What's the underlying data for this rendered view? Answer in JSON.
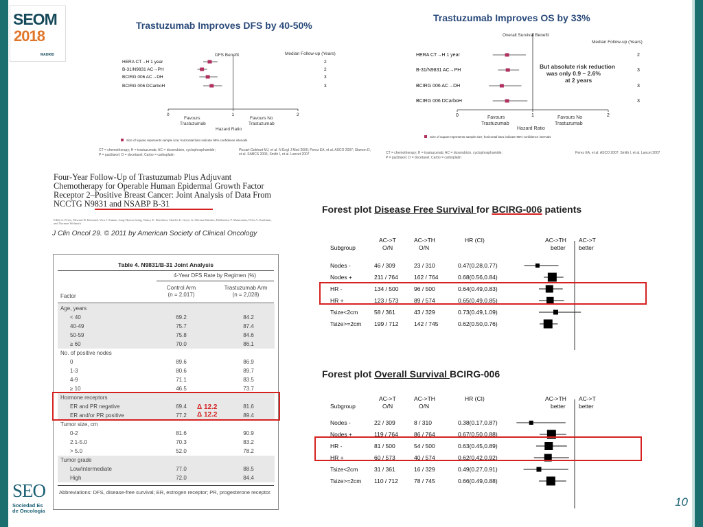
{
  "logo": {
    "seom": "SEOM",
    "year": "2018",
    "city": "MADRID"
  },
  "dfs_panel": {
    "title": "Trastuzumab Improves DFS by 40-50%",
    "benefit_label": "DFS Benefit",
    "followup_header": "Median Follow-up (Years)",
    "x_axis_label": "Hazard Ratio",
    "favours_left": [
      "Favours",
      "Trastuzumab"
    ],
    "favours_right": [
      "Favours No",
      "Trastuzumab"
    ],
    "legend_text": "Size of square represents sample size; horizontal bars indicate 95% confidence intervals",
    "footnotes": [
      "CT = chemotherapy; H = trastuzumab; AC = doxorubicin, cyclophosphamide;",
      "P = paclitaxel; D = docetaxel; Carbo = carboplatin",
      "Piccart-Gebhart MJ, et al. N Engl J Med 2005; Perez EA, et al. ASCO 2007; Slamon D, et al. SABCS 2006; Smith I, et al. Lancet 2007"
    ]
  },
  "os_panel": {
    "title": "Trastuzumab Improves OS by 33%",
    "benefit_label": "Overall Survival Benefit",
    "followup_header": "Median Follow-up (Years)",
    "x_axis_label": "Hazard Ratio",
    "favours_left": [
      "Favours",
      "Trastuzumab"
    ],
    "favours_right": [
      "Favours No",
      "Trastuzumab"
    ],
    "annotation": [
      "But absolute risk reduction",
      "was only 0.9 – 2.6%",
      "at 2 years"
    ],
    "legend_text": "Size of square represents sample size; horizontal bars indicate 95% confidence intervals",
    "footnotes": [
      "CT = chemotherapy; H = trastuzumab; AC = doxorubicin, cyclophosphamide;",
      "P = paclitaxel; D = docetaxel; Carbo = carboplatin",
      "Perez EA, et al. ASCO 2007; Smith I, et al. Lancet 2007"
    ]
  },
  "paper": {
    "title": "Four-Year Follow-Up of Trastuzumab Plus Adjuvant Chemotherapy for Operable Human Epidermal Growth Factor Receptor 2–Positive Breast Cancer: Joint Analysis of Data From NCCTG N9831 and NSABP B-31",
    "authors": "Edith A. Perez, Edward H. Romond, Vera J. Suman, Jong-Hyeon Jeong, Nancy E. Davidson, Charles E. Geyer Jr, Silvana Martino, Eleftherios P. Mamounas, Peter A. Kaufman, and Norman Wolmark",
    "citation": "J Clin Oncol 29. © 2011 by American Society of Clinical Oncology"
  },
  "table": {
    "title": "Table 4. N9831/B-31 Joint Analysis",
    "group_header": "4-Year DFS Rate by Regimen (%)",
    "col_factor": "Factor",
    "col_control": [
      "Control Arm",
      "(n = 2,017)"
    ],
    "col_trast": [
      "Trastuzumab Arm",
      "(n = 2,028)"
    ],
    "rows": [
      {
        "factor": "Age, years",
        "control": "",
        "trast": "",
        "head": true,
        "shaded": true
      },
      {
        "factor": "< 40",
        "control": "69.2",
        "trast": "84.2",
        "shaded": true
      },
      {
        "factor": "40-49",
        "control": "75.7",
        "trast": "87.4",
        "shaded": true
      },
      {
        "factor": "50-59",
        "control": "75.8",
        "trast": "84.6",
        "shaded": true
      },
      {
        "factor": "≥ 60",
        "control": "70.0",
        "trast": "86.1",
        "shaded": true
      },
      {
        "factor": "No. of positive nodes",
        "control": "",
        "trast": "",
        "head": true,
        "shaded": false
      },
      {
        "factor": "0",
        "control": "89.6",
        "trast": "86.9",
        "shaded": false
      },
      {
        "factor": "1-3",
        "control": "80.6",
        "trast": "89.7",
        "shaded": false
      },
      {
        "factor": "4-9",
        "control": "71.1",
        "trast": "83.5",
        "shaded": false
      },
      {
        "factor": "≥ 10",
        "control": "46.5",
        "trast": "73.7",
        "shaded": false
      },
      {
        "factor": "Hormone receptors",
        "control": "",
        "trast": "",
        "head": true,
        "shaded": true
      },
      {
        "factor": "ER and PR negative",
        "control": "69.4",
        "trast": "81.6",
        "shaded": true
      },
      {
        "factor": "ER and/or PR positive",
        "control": "77.2",
        "trast": "89.4",
        "shaded": true
      },
      {
        "factor": "Tumor size, cm",
        "control": "",
        "trast": "",
        "head": true,
        "shaded": false
      },
      {
        "factor": "0-2",
        "control": "81.6",
        "trast": "90.9",
        "shaded": false
      },
      {
        "factor": "2.1-5.0",
        "control": "70.3",
        "trast": "83.2",
        "shaded": false
      },
      {
        "factor": "> 5.0",
        "control": "52.0",
        "trast": "78.2",
        "shaded": false
      },
      {
        "factor": "Tumor grade",
        "control": "",
        "trast": "",
        "head": true,
        "shaded": true
      },
      {
        "factor": "Low/intermediate",
        "control": "77.0",
        "trast": "88.5",
        "shaded": true
      },
      {
        "factor": "High",
        "control": "72.0",
        "trast": "84.4",
        "shaded": true
      }
    ],
    "footnote": "Abbreviations: DFS, disease-free survival; ER, estrogen receptor; PR, progesterone receptor.",
    "delta_1": "Δ 12.2",
    "delta_2": "Δ 12.2"
  },
  "dfs_heading": {
    "prefix": "Forest plot ",
    "underlined": "Disease Free Survival ",
    "mid": "for ",
    "underlined_red": "BCIRG-006",
    "suffix": " patients"
  },
  "os_heading": {
    "prefix": "Forest plot ",
    "underlined": "Overall Survival ",
    "suffix": "BCIRG-006"
  },
  "forest_headers": {
    "subgroup": "Subgroup",
    "col_act": [
      "AC->T",
      "O/N"
    ],
    "col_acth": [
      "AC->TH",
      "O/N"
    ],
    "col_hr": "HR (CI)",
    "better_acth": [
      "AC->TH",
      "better"
    ],
    "better_act": [
      "AC->T",
      "better"
    ]
  },
  "seo_logo": {
    "name": "SEO",
    "sub": [
      "Sociedad Es",
      "de Oncología"
    ]
  },
  "page_number": "10",
  "colors": {
    "highlight": "#d62020",
    "teal": "#1b6f6f",
    "forest_square": "#000000",
    "summary_marker": "#b03060"
  },
  "chart_data": [
    {
      "type": "forest",
      "title": "Trastuzumab Improves DFS by 40-50%",
      "xlabel": "Hazard Ratio",
      "xlim": [
        0,
        2
      ],
      "xticks": [
        "0",
        "1",
        "2"
      ],
      "categories": [
        "HERA CT→H 1 year",
        "B-31/N9831 AC→PH",
        "BCIRG 006 AC→DH",
        "BCIRG 006 DCarboH"
      ],
      "hr": [
        0.64,
        0.52,
        0.61,
        0.67
      ],
      "ci_low": [
        0.54,
        0.45,
        0.48,
        0.54
      ],
      "ci_high": [
        0.76,
        0.6,
        0.76,
        0.83
      ],
      "followup_years": [
        "2",
        "2",
        "3",
        "3"
      ]
    },
    {
      "type": "forest",
      "title": "Trastuzumab Improves OS by 33%",
      "xlabel": "Hazard Ratio",
      "xlim": [
        0,
        2
      ],
      "xticks": [
        "0",
        "1",
        "2"
      ],
      "categories": [
        "HERA CT→H 1 year",
        "B-31/N9831 AC→PH",
        "BCIRG 006 AC→DH",
        "BCIRG 006 DCarboH"
      ],
      "hr": [
        0.66,
        0.67,
        0.59,
        0.66
      ],
      "ci_low": [
        0.47,
        0.54,
        0.42,
        0.47
      ],
      "ci_high": [
        0.91,
        0.82,
        0.85,
        0.93
      ],
      "followup_years": [
        "2",
        "3",
        "3",
        "3"
      ]
    },
    {
      "type": "forest",
      "title": "Forest plot Disease Free Survival for BCIRG-006 patients",
      "xlim": [
        0.0,
        2.0
      ],
      "xticks": [
        "0.0",
        "1.0",
        "2.0"
      ],
      "categories": [
        "Nodes -",
        "Nodes +",
        "HR -",
        "HR +",
        "Tsize<2cm",
        "Tsize>=2cm"
      ],
      "act": [
        "46 / 309",
        "211 / 764",
        "134 / 500",
        "123 / 573",
        "58 / 361",
        "199 / 712"
      ],
      "acth": [
        "23 / 310",
        "162 / 764",
        "96 / 500",
        "89 / 574",
        "43 / 329",
        "142 / 745"
      ],
      "hr_ci": [
        "0.47(0.28,0.77)",
        "0.68(0.56,0.84)",
        "0.64(0.49,0.83)",
        "0.65(0.49,0.85)",
        "0.73(0.49,1.09)",
        "0.62(0.50,0.76)"
      ],
      "hr": [
        0.47,
        0.68,
        0.64,
        0.65,
        0.73,
        0.62
      ],
      "ci_low": [
        0.28,
        0.56,
        0.49,
        0.49,
        0.49,
        0.5
      ],
      "ci_high": [
        0.77,
        0.84,
        0.83,
        0.85,
        1.09,
        0.76
      ],
      "weight": [
        0.3,
        1.0,
        0.8,
        0.75,
        0.4,
        1.0
      ],
      "highlighted": [
        "HR -",
        "HR +"
      ]
    },
    {
      "type": "forest",
      "title": "Forest plot Overall Survival BCIRG-006",
      "xlim": [
        0.0,
        2.0
      ],
      "xticks": [
        "0.0",
        "1.0",
        "2.0"
      ],
      "categories": [
        "Nodes -",
        "Nodes +",
        "HR -",
        "HR +",
        "Tsize<2cm",
        "Tsize>=2cm"
      ],
      "act": [
        "22 / 309",
        "119 / 764",
        "81 / 500",
        "60 / 573",
        "31 / 361",
        "110 / 712"
      ],
      "acth": [
        "8 / 310",
        "86 / 764",
        "54 / 500",
        "40 / 574",
        "16 / 329",
        "78 / 745"
      ],
      "hr_ci": [
        "0.38(0.17,0.87)",
        "0.67(0.50,0.88)",
        "0.63(0.45,0.89)",
        "0.62(0.42,0.92)",
        "0.49(0.27,0.91)",
        "0.66(0.49,0.88)"
      ],
      "hr": [
        0.38,
        0.67,
        0.63,
        0.62,
        0.49,
        0.66
      ],
      "ci_low": [
        0.17,
        0.5,
        0.45,
        0.42,
        0.27,
        0.49
      ],
      "ci_high": [
        0.87,
        0.88,
        0.89,
        0.92,
        0.91,
        0.88
      ],
      "weight": [
        0.3,
        1.0,
        0.9,
        0.8,
        0.4,
        1.0
      ],
      "highlighted": [
        "HR -",
        "HR +"
      ]
    }
  ]
}
